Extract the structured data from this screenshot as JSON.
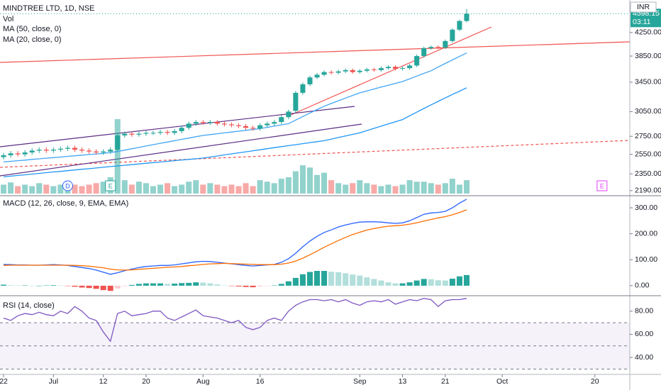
{
  "chart_data": [
    {
      "type": "candlestick",
      "title": "MINDTREE LTD, 1D, NSE",
      "currency": "INR",
      "countdown": "03:11",
      "log_scale": true,
      "up_color": "#26a69a",
      "down_color": "#ef5350",
      "open": [
        2520,
        2540,
        2560,
        2550,
        2570,
        2590,
        2600,
        2590,
        2600,
        2610,
        2620,
        2600,
        2590,
        2580,
        2570,
        2580,
        2600,
        2760,
        2780,
        2770,
        2780,
        2790,
        2790,
        2800,
        2790,
        2810,
        2850,
        2900,
        2920,
        2910,
        2920,
        2900,
        2890,
        2880,
        2870,
        2850,
        2840,
        2880,
        2900,
        2920,
        2980,
        3060,
        3300,
        3420,
        3520,
        3560,
        3600,
        3590,
        3610,
        3630,
        3600,
        3620,
        3640,
        3630,
        3660,
        3680,
        3650,
        3660,
        3700,
        3850,
        3980,
        4000,
        3990,
        4100,
        4300,
        4460
      ],
      "high": [
        2565,
        2585,
        2585,
        2595,
        2615,
        2625,
        2625,
        2625,
        2635,
        2645,
        2645,
        2625,
        2615,
        2605,
        2605,
        2625,
        2785,
        2805,
        2805,
        2805,
        2815,
        2815,
        2825,
        2825,
        2835,
        2875,
        2925,
        2945,
        2945,
        2945,
        2945,
        2925,
        2915,
        2905,
        2895,
        2875,
        2905,
        2925,
        2945,
        3005,
        3075,
        3325,
        3445,
        3545,
        3585,
        3625,
        3625,
        3635,
        3655,
        3655,
        3645,
        3665,
        3665,
        3685,
        3705,
        3705,
        3685,
        3725,
        3875,
        4005,
        4025,
        4025,
        4125,
        4325,
        4485,
        4690
      ],
      "low": [
        2495,
        2515,
        2525,
        2525,
        2545,
        2565,
        2565,
        2565,
        2575,
        2585,
        2575,
        2565,
        2555,
        2545,
        2545,
        2555,
        2575,
        2735,
        2745,
        2745,
        2755,
        2765,
        2765,
        2765,
        2765,
        2785,
        2825,
        2875,
        2885,
        2885,
        2875,
        2865,
        2855,
        2845,
        2825,
        2815,
        2815,
        2855,
        2875,
        2895,
        2955,
        3035,
        3275,
        3395,
        3495,
        3535,
        3565,
        3565,
        3585,
        3575,
        3575,
        3595,
        3605,
        3605,
        3635,
        3625,
        3625,
        3635,
        3675,
        3825,
        3955,
        3965,
        3965,
        4075,
        4275,
        4435
      ],
      "close": [
        2540,
        2560,
        2550,
        2570,
        2590,
        2600,
        2590,
        2600,
        2610,
        2620,
        2600,
        2590,
        2580,
        2570,
        2580,
        2600,
        2760,
        2780,
        2770,
        2780,
        2790,
        2790,
        2800,
        2790,
        2810,
        2850,
        2900,
        2920,
        2910,
        2920,
        2900,
        2890,
        2880,
        2870,
        2850,
        2840,
        2880,
        2900,
        2920,
        2980,
        3050,
        3300,
        3420,
        3520,
        3560,
        3600,
        3590,
        3610,
        3630,
        3600,
        3620,
        3640,
        3630,
        3660,
        3680,
        3650,
        3660,
        3700,
        3850,
        3980,
        4000,
        3990,
        4100,
        4300,
        4460,
        4598.15
      ],
      "volume": {
        "name": "Vol",
        "vlim": [
          0,
          100
        ],
        "values": [
          12,
          15,
          10,
          12,
          10,
          14,
          12,
          10,
          12,
          14,
          12,
          10,
          12,
          14,
          16,
          22,
          100,
          18,
          12,
          16,
          14,
          10,
          12,
          14,
          10,
          12,
          16,
          18,
          12,
          14,
          12,
          10,
          12,
          10,
          14,
          10,
          18,
          16,
          14,
          20,
          22,
          30,
          38,
          35,
          25,
          28,
          18,
          14,
          12,
          14,
          18,
          14,
          12,
          10,
          12,
          10,
          12,
          18,
          16,
          16,
          14,
          12,
          14,
          20,
          12,
          18
        ]
      },
      "series": [
        {
          "name": "MA (50, close, 0)",
          "color": "#2196f3",
          "values": [
            2320,
            2327,
            2334,
            2340,
            2347,
            2354,
            2361,
            2368,
            2374,
            2381,
            2388,
            2395,
            2401,
            2408,
            2415,
            2422,
            2429,
            2435,
            2442,
            2449,
            2456,
            2463,
            2469,
            2476,
            2483,
            2490,
            2496,
            2503,
            2510,
            2521,
            2532,
            2544,
            2555,
            2566,
            2577,
            2588,
            2599,
            2611,
            2622,
            2633,
            2644,
            2655,
            2666,
            2678,
            2689,
            2700,
            2718,
            2736,
            2754,
            2772,
            2790,
            2817,
            2843,
            2870,
            2897,
            2923,
            2950,
            2997,
            3043,
            3090,
            3137,
            3183,
            3230,
            3277,
            3323,
            3370
          ]
        },
        {
          "name": "MA (20, close, 0)",
          "color": "#42a5f5",
          "values": [
            2470,
            2476,
            2483,
            2489,
            2496,
            2502,
            2509,
            2515,
            2521,
            2528,
            2534,
            2541,
            2547,
            2554,
            2560,
            2570,
            2580,
            2595,
            2610,
            2625,
            2640,
            2655,
            2670,
            2685,
            2700,
            2715,
            2730,
            2745,
            2760,
            2770,
            2780,
            2790,
            2800,
            2810,
            2820,
            2830,
            2840,
            2855,
            2870,
            2885,
            2900,
            2944,
            2988,
            3032,
            3076,
            3120,
            3156,
            3192,
            3228,
            3264,
            3300,
            3327,
            3353,
            3380,
            3407,
            3433,
            3460,
            3500,
            3540,
            3580,
            3620,
            3676,
            3732,
            3788,
            3844,
            3900
          ]
        }
      ],
      "events": [
        {
          "label": "D",
          "x": 9,
          "color": "#2962ff"
        },
        {
          "label": "E",
          "x": 15,
          "color": "#26a69a"
        },
        {
          "label": "E",
          "x": 84,
          "color": "#e040fb"
        }
      ],
      "ylim": [
        2150,
        4870
      ],
      "yticks": [
        {
          "value": 4250,
          "label": "4250.00"
        },
        {
          "value": 3850,
          "label": "3850.00"
        },
        {
          "value": 3450,
          "label": "3450.00"
        },
        {
          "value": 3050,
          "label": "3050.00"
        },
        {
          "value": 2750,
          "label": "2750.00"
        },
        {
          "value": 2550,
          "label": "2550.00"
        },
        {
          "value": 2350,
          "label": "2350.00"
        },
        {
          "value": 2190,
          "label": "2190.00"
        }
      ]
    },
    {
      "type": "macd",
      "title": "MACD (12, 26, close, 9, EMA, EMA)",
      "lines": [
        {
          "color": "#2962ff",
          "values": [
            82,
            81,
            80,
            80,
            79,
            79,
            80,
            81,
            80,
            78,
            74,
            70,
            66,
            60,
            52,
            44,
            50,
            58,
            64,
            70,
            74,
            76,
            78,
            78,
            80,
            84,
            88,
            92,
            94,
            93,
            90,
            87,
            84,
            81,
            78,
            76,
            78,
            80,
            82,
            90,
            104,
            125,
            150,
            172,
            190,
            205,
            215,
            226,
            234,
            240,
            245,
            246,
            246,
            245,
            242,
            240,
            242,
            250,
            262,
            275,
            280,
            282,
            286,
            300,
            318,
            333
          ]
        },
        {
          "color": "#ff6d00",
          "values": [
            78,
            79,
            79,
            79,
            79,
            79,
            79,
            79,
            79,
            79,
            78,
            77,
            75,
            72,
            69,
            64,
            61,
            60,
            61,
            63,
            65,
            67,
            69,
            71,
            72,
            74,
            77,
            79,
            82,
            84,
            85,
            86,
            85,
            84,
            83,
            82,
            81,
            81,
            81,
            83,
            87,
            95,
            106,
            119,
            133,
            148,
            161,
            174,
            186,
            197,
            206,
            214,
            220,
            225,
            229,
            231,
            233,
            237,
            242,
            249,
            255,
            261,
            266,
            273,
            282,
            292
          ]
        }
      ],
      "histogram": [
        4,
        2,
        1,
        1,
        0,
        0,
        1,
        2,
        1,
        -1,
        -4,
        -7,
        -9,
        -12,
        -17,
        -20,
        -11,
        -2,
        3,
        7,
        9,
        9,
        9,
        7,
        8,
        10,
        11,
        13,
        12,
        9,
        5,
        1,
        -1,
        -3,
        -5,
        -6,
        -3,
        -1,
        1,
        7,
        17,
        30,
        44,
        53,
        57,
        57,
        54,
        52,
        48,
        43,
        39,
        32,
        26,
        20,
        13,
        9,
        9,
        13,
        20,
        26,
        25,
        21,
        20,
        27,
        36,
        41
      ],
      "ylim": [
        -33,
        341
      ],
      "yticks": [
        {
          "value": 300,
          "label": "300.00"
        },
        {
          "value": 200,
          "label": "200.00"
        },
        {
          "value": 100,
          "label": "100.00"
        },
        {
          "value": 0,
          "label": "0.00"
        }
      ]
    },
    {
      "type": "rsi",
      "title": "RSI (14, close)",
      "color": "#7e57c2",
      "values": [
        74,
        72,
        76,
        78,
        77,
        79,
        77,
        76,
        80,
        78,
        84,
        80,
        74,
        72,
        62,
        54,
        78,
        80,
        76,
        77,
        78,
        80,
        80,
        74,
        72,
        75,
        78,
        81,
        76,
        75,
        74,
        72,
        70,
        72,
        66,
        64,
        66,
        72,
        74,
        72,
        80,
        85,
        88,
        90,
        90,
        89,
        90,
        88,
        90,
        87,
        85,
        88,
        89,
        88,
        90,
        86,
        88,
        90,
        89,
        91,
        90,
        84,
        89,
        90,
        90,
        91
      ],
      "band": [
        30,
        70
      ],
      "midline": 50,
      "ylim": [
        26,
        91.5
      ],
      "yticks": [
        {
          "value": 80,
          "label": "80.00"
        },
        {
          "value": 60,
          "label": "60.00"
        },
        {
          "value": 40,
          "label": "40.00"
        }
      ],
      "xlim": [
        -0.5,
        87.9
      ],
      "xticks": [
        {
          "value": 0,
          "label": "22"
        },
        {
          "value": 7,
          "label": "Jul"
        },
        {
          "value": 14,
          "label": "12"
        },
        {
          "value": 20,
          "label": "20"
        },
        {
          "value": 28,
          "label": "Aug"
        },
        {
          "value": 36,
          "label": "16"
        },
        {
          "value": 50,
          "label": "Sep"
        },
        {
          "value": 56,
          "label": "13"
        },
        {
          "value": 62,
          "label": "21"
        },
        {
          "value": 70,
          "label": "Oct"
        },
        {
          "value": 83,
          "label": "20"
        }
      ]
    }
  ]
}
